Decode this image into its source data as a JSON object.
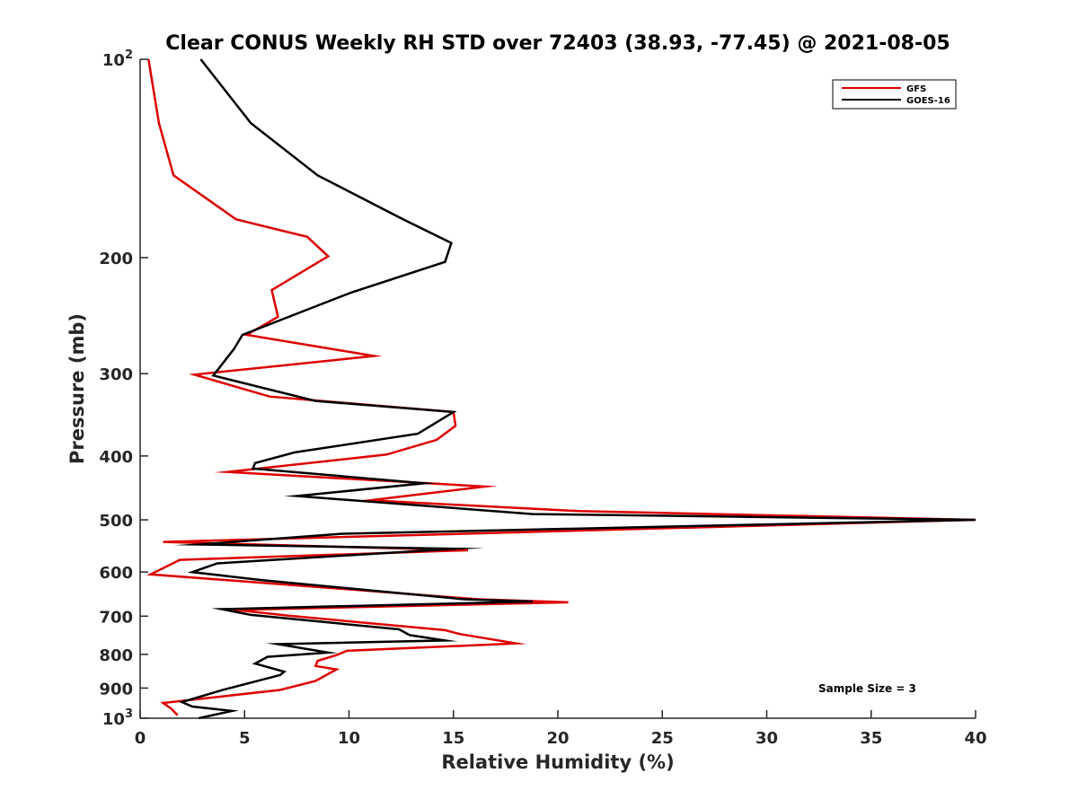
{
  "chart_data": {
    "type": "line",
    "title": "Clear CONUS Weekly RH STD over 72403 (38.93, -77.45) @ 2021-08-05",
    "xlabel": "Relative Humidity (%)",
    "ylabel": "Pressure (mb)",
    "xlim": [
      0,
      40
    ],
    "ylim": [
      100,
      1000
    ],
    "y_scale": "log",
    "y_reversed": true,
    "grid": false,
    "legend_position": "top-right",
    "x_ticks": [
      0,
      5,
      10,
      15,
      20,
      25,
      30,
      35,
      40
    ],
    "y_ticks": [
      {
        "value": 100,
        "base": "10",
        "exp": "2"
      },
      {
        "value": 200,
        "label": "200"
      },
      {
        "value": 300,
        "label": "300"
      },
      {
        "value": 400,
        "label": "400"
      },
      {
        "value": 500,
        "label": "500"
      },
      {
        "value": 600,
        "label": "600"
      },
      {
        "value": 700,
        "label": "700"
      },
      {
        "value": 800,
        "label": "800"
      },
      {
        "value": 900,
        "label": "900"
      },
      {
        "value": 1000,
        "base": "10",
        "exp": "3"
      }
    ],
    "annotation": "Sample Size = 3",
    "series": [
      {
        "name": "GFS",
        "color": "#dd0000",
        "points": [
          [
            0.4,
            100
          ],
          [
            0.9,
            125
          ],
          [
            1.6,
            150
          ],
          [
            4.6,
            175
          ],
          [
            8.0,
            186
          ],
          [
            9.0,
            199
          ],
          [
            6.3,
            224
          ],
          [
            6.6,
            246
          ],
          [
            5.1,
            262
          ],
          [
            11.2,
            282
          ],
          [
            2.6,
            301
          ],
          [
            6.2,
            325
          ],
          [
            15.0,
            343
          ],
          [
            15.1,
            360
          ],
          [
            14.2,
            378
          ],
          [
            11.8,
            398
          ],
          [
            4.2,
            423
          ],
          [
            16.5,
            445
          ],
          [
            11.0,
            467
          ],
          [
            21.0,
            485
          ],
          [
            40.0,
            500
          ],
          [
            1.1,
            540
          ],
          [
            15.7,
            556
          ],
          [
            1.9,
            575
          ],
          [
            0.5,
            605
          ],
          [
            4.7,
            619
          ],
          [
            16.2,
            660
          ],
          [
            20.5,
            667
          ],
          [
            4.6,
            685
          ],
          [
            7.1,
            699
          ],
          [
            14.6,
            735
          ],
          [
            15.3,
            745
          ],
          [
            18.0,
            770
          ],
          [
            9.9,
            790
          ],
          [
            9.4,
            802
          ],
          [
            8.5,
            818
          ],
          [
            8.4,
            833
          ],
          [
            9.4,
            843
          ],
          [
            8.4,
            878
          ],
          [
            6.7,
            906
          ],
          [
            1.1,
            948
          ],
          [
            1.5,
            968
          ],
          [
            1.8,
            990
          ]
        ]
      },
      {
        "name": "GOES-16",
        "color": "#000000",
        "points": [
          [
            2.9,
            100
          ],
          [
            5.3,
            125
          ],
          [
            8.5,
            150
          ],
          [
            12.6,
            175
          ],
          [
            14.9,
            190
          ],
          [
            14.6,
            203
          ],
          [
            10.1,
            226
          ],
          [
            4.9,
            262
          ],
          [
            4.5,
            275
          ],
          [
            3.5,
            302
          ],
          [
            8.4,
            330
          ],
          [
            15.0,
            343
          ],
          [
            13.3,
            370
          ],
          [
            7.4,
            395
          ],
          [
            5.5,
            410
          ],
          [
            5.4,
            418
          ],
          [
            13.6,
            440
          ],
          [
            7.5,
            460
          ],
          [
            18.8,
            490
          ],
          [
            40.0,
            500
          ],
          [
            9.6,
            525
          ],
          [
            2.8,
            545
          ],
          [
            15.1,
            553
          ],
          [
            3.7,
            582
          ],
          [
            2.5,
            600
          ],
          [
            5.8,
            617
          ],
          [
            15.5,
            660
          ],
          [
            18.8,
            665
          ],
          [
            3.9,
            683
          ],
          [
            5.3,
            697
          ],
          [
            12.4,
            733
          ],
          [
            12.9,
            748
          ],
          [
            14.6,
            762
          ],
          [
            6.6,
            772
          ],
          [
            9.0,
            795
          ],
          [
            6.1,
            807
          ],
          [
            5.5,
            826
          ],
          [
            6.9,
            850
          ],
          [
            6.7,
            860
          ],
          [
            4.0,
            905
          ],
          [
            2.0,
            945
          ],
          [
            2.5,
            960
          ],
          [
            4.4,
            975
          ],
          [
            2.8,
            1000
          ]
        ]
      }
    ]
  }
}
